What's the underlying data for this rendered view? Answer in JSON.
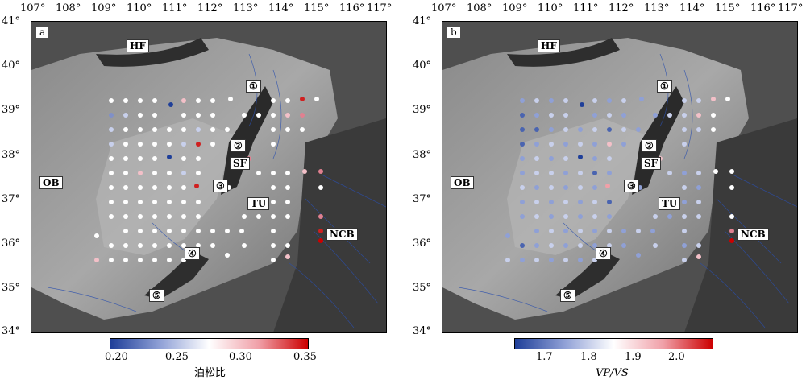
{
  "panels": [
    {
      "letter": "a",
      "colorbar": {
        "ticks": [
          "0.20",
          "0.25",
          "0.30",
          "0.35"
        ],
        "title": "泊松比",
        "colors": {
          "low": "#1f3f99",
          "mid": "#ffffff",
          "high": "#cc0000"
        }
      }
    },
    {
      "letter": "b",
      "colorbar": {
        "ticks": [
          "1.7",
          "1.8",
          "1.9",
          "2.0"
        ],
        "title": "VP/VS",
        "colors": {
          "low": "#1f3f99",
          "mid": "#ffffff",
          "high": "#cc0000"
        }
      }
    }
  ],
  "axes": {
    "lon_labels": [
      "107°",
      "108°",
      "109°",
      "110°",
      "111°",
      "112°",
      "113°",
      "114°",
      "115°",
      "116°",
      "117°"
    ],
    "lat_labels": [
      "41°",
      "40°",
      "39°",
      "38°",
      "37°",
      "36°",
      "35°",
      "34°"
    ],
    "lon_range": [
      107,
      117
    ],
    "lat_range": [
      34,
      41
    ]
  },
  "region_labels": {
    "HF": "HF",
    "OB": "OB",
    "SF": "SF",
    "TU": "TU",
    "NCB": "NCB",
    "num1": "①",
    "num2": "②",
    "num3": "③",
    "num4": "④",
    "num5": "⑤"
  }
}
